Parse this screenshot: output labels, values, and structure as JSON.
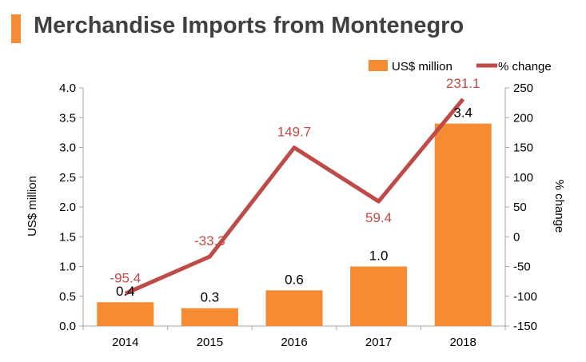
{
  "title": "Merchandise Imports from Montenegro",
  "colors": {
    "accent": "#F58B32",
    "bar": "#F58B32",
    "line": "#BE4B48",
    "title": "#404040",
    "axis": "#A6A6A6",
    "text": "#000000"
  },
  "chart_data": {
    "type": "bar",
    "title": "Merchandise Imports from Montenegro",
    "categories": [
      "2014",
      "2015",
      "2016",
      "2017",
      "2018"
    ],
    "series": [
      {
        "name": "US$ million",
        "type": "bar",
        "axis": "left",
        "values": [
          0.4,
          0.3,
          0.6,
          1.0,
          3.4
        ],
        "labels": [
          "0.4",
          "0.3",
          "0.6",
          "1.0",
          "3.4"
        ]
      },
      {
        "name": "% change",
        "type": "line",
        "axis": "right",
        "values": [
          -95.4,
          -33.3,
          149.7,
          59.4,
          231.1
        ],
        "labels": [
          "-95.4",
          "-33.3",
          "149.7",
          "59.4",
          "231.1"
        ]
      }
    ],
    "ylabel": "US$ million",
    "y2label": "% change",
    "ylim": [
      0,
      4
    ],
    "y2lim": [
      -150,
      250
    ],
    "yticks": [
      "0.0",
      "0.5",
      "1.0",
      "1.5",
      "2.0",
      "2.5",
      "3.0",
      "3.5",
      "4.0"
    ],
    "y2ticks": [
      "-150",
      "-100",
      "-50",
      "0",
      "50",
      "100",
      "150",
      "200",
      "250"
    ],
    "grid": false,
    "legend": "top-right"
  }
}
